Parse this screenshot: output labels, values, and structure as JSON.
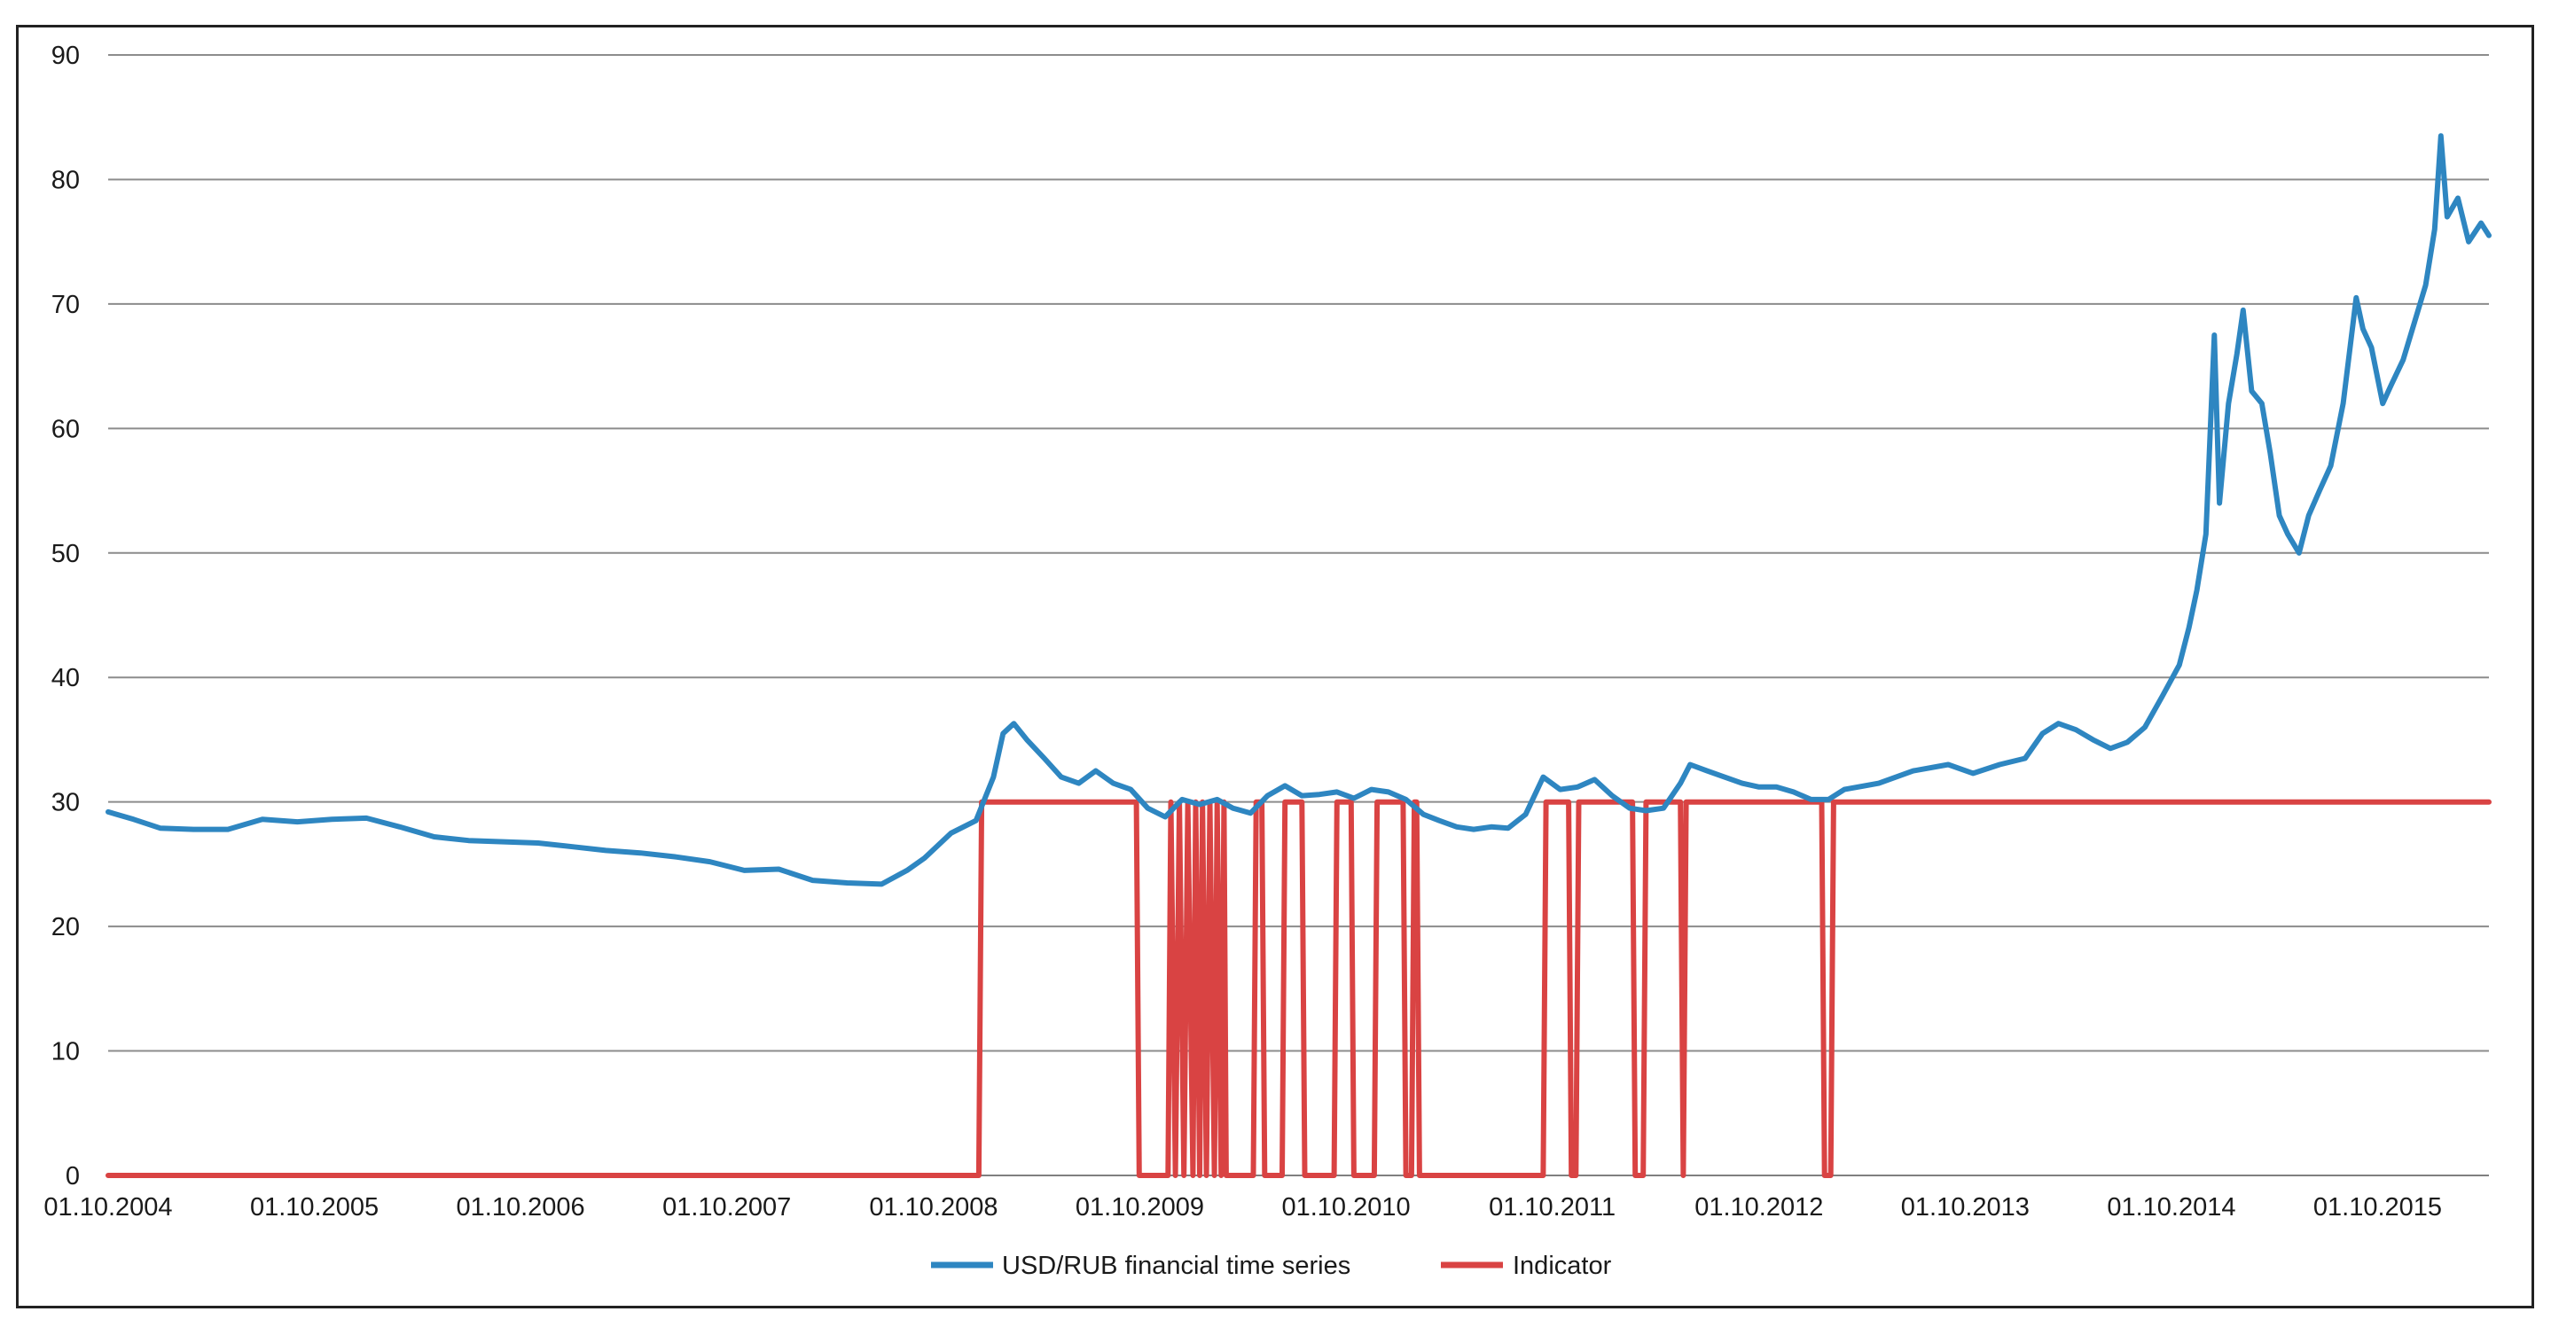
{
  "chart_data": {
    "type": "line",
    "ylim": [
      0,
      90
    ],
    "y_ticks": [
      "0",
      "10",
      "20",
      "30",
      "40",
      "50",
      "60",
      "70",
      "80",
      "90"
    ],
    "grid": true,
    "legend": "bottom-center",
    "x_ticks": [
      "01.10.2004",
      "01.10.2005",
      "01.10.2006",
      "01.10.2007",
      "01.10.2008",
      "01.10.2009",
      "01.10.2010",
      "01.10.2011",
      "01.10.2012",
      "01.10.2013",
      "01.10.2014",
      "01.10.2015"
    ],
    "x_range": [
      "01.10.2004",
      "15.04.2016"
    ],
    "series": [
      {
        "name": "USD/RUB financial time series",
        "color": "#2e86c1",
        "points": [
          [
            "2004-10-01",
            29.2
          ],
          [
            "2004-11-15",
            28.6
          ],
          [
            "2005-01-01",
            27.9
          ],
          [
            "2005-03-01",
            27.8
          ],
          [
            "2005-05-01",
            27.8
          ],
          [
            "2005-07-01",
            28.6
          ],
          [
            "2005-09-01",
            28.4
          ],
          [
            "2005-11-01",
            28.6
          ],
          [
            "2006-01-01",
            28.7
          ],
          [
            "2006-03-01",
            28.0
          ],
          [
            "2006-05-01",
            27.2
          ],
          [
            "2006-07-01",
            26.9
          ],
          [
            "2006-09-01",
            26.8
          ],
          [
            "2006-11-01",
            26.7
          ],
          [
            "2007-01-01",
            26.4
          ],
          [
            "2007-03-01",
            26.1
          ],
          [
            "2007-05-01",
            25.9
          ],
          [
            "2007-07-01",
            25.6
          ],
          [
            "2007-09-01",
            25.2
          ],
          [
            "2007-11-01",
            24.5
          ],
          [
            "2008-01-01",
            24.6
          ],
          [
            "2008-03-01",
            23.7
          ],
          [
            "2008-05-01",
            23.5
          ],
          [
            "2008-07-01",
            23.4
          ],
          [
            "2008-08-15",
            24.5
          ],
          [
            "2008-09-15",
            25.5
          ],
          [
            "2008-11-01",
            27.5
          ],
          [
            "2008-12-15",
            28.5
          ],
          [
            "2009-01-15",
            32.0
          ],
          [
            "2009-02-01",
            35.5
          ],
          [
            "2009-02-20",
            36.3
          ],
          [
            "2009-03-15",
            35.0
          ],
          [
            "2009-04-15",
            33.5
          ],
          [
            "2009-05-15",
            32.0
          ],
          [
            "2009-06-15",
            31.5
          ],
          [
            "2009-07-15",
            32.5
          ],
          [
            "2009-08-15",
            31.5
          ],
          [
            "2009-09-15",
            31.0
          ],
          [
            "2009-10-15",
            29.5
          ],
          [
            "2009-11-15",
            28.8
          ],
          [
            "2009-12-15",
            30.2
          ],
          [
            "2010-01-15",
            29.8
          ],
          [
            "2010-02-15",
            30.2
          ],
          [
            "2010-03-15",
            29.5
          ],
          [
            "2010-04-15",
            29.1
          ],
          [
            "2010-05-15",
            30.5
          ],
          [
            "2010-06-15",
            31.3
          ],
          [
            "2010-07-15",
            30.5
          ],
          [
            "2010-08-15",
            30.6
          ],
          [
            "2010-09-15",
            30.8
          ],
          [
            "2010-10-15",
            30.3
          ],
          [
            "2010-11-15",
            31.0
          ],
          [
            "2010-12-15",
            30.8
          ],
          [
            "2011-01-15",
            30.2
          ],
          [
            "2011-02-15",
            29.0
          ],
          [
            "2011-03-15",
            28.5
          ],
          [
            "2011-04-15",
            28.0
          ],
          [
            "2011-05-15",
            27.8
          ],
          [
            "2011-06-15",
            28.0
          ],
          [
            "2011-07-15",
            27.9
          ],
          [
            "2011-08-15",
            29.0
          ],
          [
            "2011-09-15",
            32.0
          ],
          [
            "2011-10-15",
            31.0
          ],
          [
            "2011-11-15",
            31.2
          ],
          [
            "2011-12-15",
            31.8
          ],
          [
            "2012-01-15",
            30.5
          ],
          [
            "2012-02-15",
            29.5
          ],
          [
            "2012-03-15",
            29.3
          ],
          [
            "2012-04-15",
            29.5
          ],
          [
            "2012-05-15",
            31.5
          ],
          [
            "2012-06-01",
            33.0
          ],
          [
            "2012-07-01",
            32.5
          ],
          [
            "2012-08-01",
            32.0
          ],
          [
            "2012-09-01",
            31.5
          ],
          [
            "2012-10-01",
            31.2
          ],
          [
            "2012-11-01",
            31.2
          ],
          [
            "2012-12-01",
            30.8
          ],
          [
            "2013-01-01",
            30.2
          ],
          [
            "2013-02-01",
            30.2
          ],
          [
            "2013-03-01",
            31.0
          ],
          [
            "2013-05-01",
            31.5
          ],
          [
            "2013-07-01",
            32.5
          ],
          [
            "2013-09-01",
            33.0
          ],
          [
            "2013-10-15",
            32.3
          ],
          [
            "2013-12-01",
            33.0
          ],
          [
            "2014-01-15",
            33.5
          ],
          [
            "2014-02-15",
            35.5
          ],
          [
            "2014-03-15",
            36.3
          ],
          [
            "2014-04-15",
            35.8
          ],
          [
            "2014-05-15",
            35.0
          ],
          [
            "2014-06-15",
            34.3
          ],
          [
            "2014-07-15",
            34.8
          ],
          [
            "2014-08-15",
            36.0
          ],
          [
            "2014-09-15",
            38.5
          ],
          [
            "2014-10-15",
            41.0
          ],
          [
            "2014-11-01",
            44.0
          ],
          [
            "2014-11-15",
            47.0
          ],
          [
            "2014-12-01",
            51.5
          ],
          [
            "2014-12-16",
            67.5
          ],
          [
            "2014-12-25",
            54.0
          ],
          [
            "2015-01-10",
            62.0
          ],
          [
            "2015-01-25",
            66.0
          ],
          [
            "2015-02-05",
            69.5
          ],
          [
            "2015-02-20",
            63.0
          ],
          [
            "2015-03-10",
            62.0
          ],
          [
            "2015-03-25",
            58.0
          ],
          [
            "2015-04-10",
            53.0
          ],
          [
            "2015-04-25",
            51.5
          ],
          [
            "2015-05-15",
            50.0
          ],
          [
            "2015-06-01",
            53.0
          ],
          [
            "2015-06-20",
            55.0
          ],
          [
            "2015-07-10",
            57.0
          ],
          [
            "2015-08-01",
            62.0
          ],
          [
            "2015-08-24",
            70.5
          ],
          [
            "2015-09-05",
            68.0
          ],
          [
            "2015-09-20",
            66.5
          ],
          [
            "2015-10-10",
            62.0
          ],
          [
            "2015-10-25",
            63.5
          ],
          [
            "2015-11-15",
            65.5
          ],
          [
            "2015-12-05",
            68.5
          ],
          [
            "2015-12-25",
            71.5
          ],
          [
            "2016-01-10",
            76.0
          ],
          [
            "2016-01-21",
            83.5
          ],
          [
            "2016-02-01",
            77.0
          ],
          [
            "2016-02-20",
            78.5
          ],
          [
            "2016-03-10",
            75.0
          ],
          [
            "2016-04-01",
            76.5
          ],
          [
            "2016-04-15",
            75.5
          ]
        ]
      },
      {
        "name": "Indicator",
        "color": "#d94343",
        "points": [
          [
            "2004-10-01",
            0
          ],
          [
            "2008-12-20",
            0
          ],
          [
            "2008-12-25",
            30
          ],
          [
            "2009-09-25",
            30
          ],
          [
            "2009-09-30",
            0
          ],
          [
            "2009-11-20",
            0
          ],
          [
            "2009-11-25",
            30
          ],
          [
            "2009-12-03",
            0
          ],
          [
            "2009-12-10",
            30
          ],
          [
            "2009-12-18",
            0
          ],
          [
            "2009-12-25",
            30
          ],
          [
            "2010-01-03",
            0
          ],
          [
            "2010-01-08",
            30
          ],
          [
            "2010-01-15",
            0
          ],
          [
            "2010-01-20",
            30
          ],
          [
            "2010-01-27",
            0
          ],
          [
            "2010-02-02",
            30
          ],
          [
            "2010-02-10",
            0
          ],
          [
            "2010-02-15",
            30
          ],
          [
            "2010-02-22",
            0
          ],
          [
            "2010-02-27",
            30
          ],
          [
            "2010-03-03",
            0
          ],
          [
            "2010-04-20",
            0
          ],
          [
            "2010-04-25",
            30
          ],
          [
            "2010-05-05",
            30
          ],
          [
            "2010-05-10",
            0
          ],
          [
            "2010-06-10",
            0
          ],
          [
            "2010-06-15",
            30
          ],
          [
            "2010-07-15",
            30
          ],
          [
            "2010-07-20",
            0
          ],
          [
            "2010-09-10",
            0
          ],
          [
            "2010-09-15",
            30
          ],
          [
            "2010-10-10",
            30
          ],
          [
            "2010-10-15",
            0
          ],
          [
            "2010-11-20",
            0
          ],
          [
            "2010-11-25",
            30
          ],
          [
            "2011-01-10",
            30
          ],
          [
            "2011-01-15",
            0
          ],
          [
            "2011-01-25",
            0
          ],
          [
            "2011-01-30",
            30
          ],
          [
            "2011-02-03",
            30
          ],
          [
            "2011-02-08",
            0
          ],
          [
            "2011-09-15",
            0
          ],
          [
            "2011-09-20",
            30
          ],
          [
            "2011-10-30",
            30
          ],
          [
            "2011-11-04",
            0
          ],
          [
            "2011-11-12",
            0
          ],
          [
            "2011-11-17",
            30
          ],
          [
            "2012-02-20",
            30
          ],
          [
            "2012-02-25",
            0
          ],
          [
            "2012-03-10",
            0
          ],
          [
            "2012-03-15",
            30
          ],
          [
            "2012-05-15",
            30
          ],
          [
            "2012-05-20",
            0
          ],
          [
            "2012-05-25",
            30
          ],
          [
            "2013-01-20",
            30
          ],
          [
            "2013-01-25",
            0
          ],
          [
            "2013-02-05",
            0
          ],
          [
            "2013-02-10",
            30
          ],
          [
            "2016-04-15",
            30
          ]
        ]
      }
    ]
  }
}
